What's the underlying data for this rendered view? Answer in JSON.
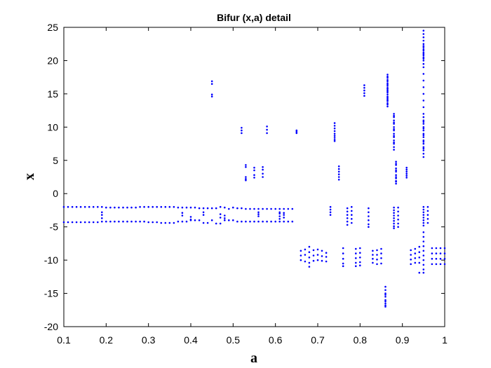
{
  "chart_data": {
    "type": "scatter",
    "title": "Bifur (x,a) detail",
    "xlabel": "a",
    "ylabel": "x",
    "xlim": [
      0.1,
      1.0
    ],
    "ylim": [
      -20,
      25
    ],
    "x_ticks": [
      "0.1",
      "0.2",
      "0.3",
      "0.4",
      "0.5",
      "0.6",
      "0.7",
      "0.8",
      "0.9",
      "1"
    ],
    "y_ticks": [
      "25",
      "20",
      "15",
      "10",
      "5",
      "0",
      "-5",
      "-10",
      "-15",
      "-20"
    ],
    "grid": false,
    "legend": "none",
    "marker_color": "#0000ff",
    "series": [
      {
        "x": [
          0.1,
          0.11,
          0.12,
          0.13,
          0.14,
          0.15,
          0.16,
          0.17,
          0.18,
          0.19,
          0.2,
          0.21,
          0.22,
          0.23,
          0.24,
          0.25,
          0.26,
          0.27,
          0.28,
          0.29,
          0.3,
          0.31,
          0.32,
          0.33,
          0.34,
          0.35,
          0.36,
          0.37,
          0.38,
          0.39,
          0.4,
          0.41,
          0.42,
          0.43,
          0.44,
          0.45,
          0.46,
          0.47,
          0.48,
          0.49,
          0.5,
          0.51,
          0.52,
          0.53,
          0.54,
          0.55,
          0.56,
          0.57,
          0.58,
          0.59,
          0.6,
          0.61,
          0.62,
          0.63,
          0.64,
          0.1,
          0.11,
          0.12,
          0.13,
          0.14,
          0.15,
          0.16,
          0.17,
          0.18,
          0.19,
          0.2,
          0.21,
          0.22,
          0.23,
          0.24,
          0.25,
          0.26,
          0.27,
          0.28,
          0.29,
          0.3,
          0.31,
          0.32,
          0.33,
          0.34,
          0.35,
          0.36,
          0.37,
          0.38,
          0.39,
          0.4,
          0.41,
          0.42,
          0.43,
          0.44,
          0.45,
          0.46,
          0.47,
          0.48,
          0.49,
          0.5,
          0.51,
          0.52,
          0.53,
          0.54,
          0.55,
          0.56,
          0.57,
          0.58,
          0.59,
          0.6,
          0.61,
          0.62,
          0.63,
          0.64,
          0.45,
          0.45,
          0.45,
          0.45,
          0.52,
          0.52,
          0.52,
          0.58,
          0.58,
          0.58,
          0.65,
          0.65,
          0.65,
          0.53,
          0.53,
          0.53,
          0.53,
          0.53,
          0.55,
          0.55,
          0.55,
          0.55,
          0.57,
          0.57,
          0.57,
          0.57,
          0.19,
          0.19,
          0.19,
          0.38,
          0.38,
          0.4,
          0.4,
          0.43,
          0.43,
          0.47,
          0.47,
          0.48,
          0.48,
          0.56,
          0.56,
          0.56,
          0.61,
          0.61,
          0.61,
          0.61,
          0.62,
          0.62,
          0.62,
          0.74,
          0.74,
          0.74,
          0.74,
          0.74,
          0.74,
          0.74,
          0.74,
          0.74,
          0.75,
          0.75,
          0.75,
          0.75,
          0.75,
          0.75,
          0.73,
          0.73,
          0.73,
          0.73,
          0.77,
          0.77,
          0.77,
          0.77,
          0.77,
          0.77,
          0.78,
          0.78,
          0.78,
          0.78,
          0.78,
          0.82,
          0.82,
          0.82,
          0.82,
          0.82,
          0.82,
          0.89,
          0.89,
          0.89,
          0.89,
          0.89,
          0.89,
          0.96,
          0.96,
          0.96,
          0.96,
          0.96,
          0.81,
          0.81,
          0.81,
          0.81,
          0.81,
          0.66,
          0.66,
          0.66,
          0.67,
          0.67,
          0.67,
          0.68,
          0.68,
          0.68,
          0.68,
          0.68,
          0.69,
          0.69,
          0.69,
          0.7,
          0.7,
          0.7,
          0.71,
          0.71,
          0.71,
          0.72,
          0.72,
          0.72,
          0.76,
          0.76,
          0.76,
          0.76,
          0.76,
          0.79,
          0.79,
          0.79,
          0.79,
          0.79,
          0.8,
          0.8,
          0.8,
          0.8,
          0.8,
          0.83,
          0.83,
          0.83,
          0.83,
          0.84,
          0.84,
          0.84,
          0.84,
          0.85,
          0.85,
          0.85,
          0.85,
          0.92,
          0.92,
          0.92,
          0.92,
          0.93,
          0.93,
          0.93,
          0.93,
          0.94,
          0.94,
          0.94,
          0.94,
          0.94,
          0.97,
          0.97,
          0.97,
          0.97,
          0.98,
          0.98,
          0.98,
          0.98,
          0.99,
          0.99,
          0.99,
          0.99,
          1.0,
          1.0,
          1.0,
          1.0,
          0.86,
          0.86,
          0.86,
          0.86,
          0.86,
          0.86,
          0.86,
          0.86,
          0.86,
          0.86,
          0.865,
          0.865,
          0.865,
          0.865,
          0.865,
          0.865,
          0.865,
          0.865,
          0.865,
          0.865,
          0.865,
          0.865,
          0.865,
          0.865,
          0.865,
          0.865,
          0.865,
          0.865,
          0.865,
          0.865,
          0.865,
          0.865,
          0.88,
          0.88,
          0.88,
          0.88,
          0.88,
          0.88,
          0.88,
          0.88,
          0.88,
          0.88,
          0.88,
          0.88,
          0.88,
          0.88,
          0.88,
          0.88,
          0.88,
          0.88,
          0.88,
          0.88,
          0.88,
          0.88,
          0.88,
          0.88,
          0.88,
          0.88,
          0.885,
          0.885,
          0.885,
          0.885,
          0.885,
          0.885,
          0.885,
          0.885,
          0.885,
          0.885,
          0.885,
          0.885,
          0.91,
          0.91,
          0.91,
          0.91,
          0.91,
          0.91,
          0.95,
          0.95,
          0.95,
          0.95,
          0.95,
          0.95,
          0.95,
          0.95,
          0.95,
          0.95,
          0.95,
          0.95,
          0.95,
          0.95,
          0.95,
          0.95,
          0.95,
          0.95,
          0.95,
          0.95,
          0.95,
          0.95,
          0.95,
          0.95,
          0.95,
          0.95,
          0.95,
          0.95,
          0.95,
          0.95,
          0.95,
          0.95,
          0.95,
          0.95,
          0.95,
          0.95,
          0.95,
          0.95,
          0.95,
          0.95,
          0.95,
          0.95,
          0.95,
          0.95,
          0.95,
          0.95,
          0.95,
          0.95,
          0.95,
          0.95,
          0.95,
          0.95,
          0.95,
          0.95,
          0.95,
          0.95,
          0.95,
          0.95,
          0.95,
          0.95
        ],
        "y": [
          -2.0,
          -2.0,
          -2.0,
          -2.0,
          -2.0,
          -2.0,
          -2.0,
          -2.0,
          -2.0,
          -2.0,
          -2.1,
          -2.1,
          -2.1,
          -2.1,
          -2.1,
          -2.1,
          -2.1,
          -2.1,
          -2.0,
          -2.0,
          -2.0,
          -2.0,
          -2.0,
          -2.0,
          -2.0,
          -2.0,
          -2.0,
          -2.1,
          -2.1,
          -2.1,
          -2.1,
          -2.1,
          -2.2,
          -2.2,
          -2.2,
          -2.2,
          -2.2,
          -2.0,
          -2.1,
          -2.3,
          -2.1,
          -2.2,
          -2.2,
          -2.3,
          -2.3,
          -2.3,
          -2.3,
          -2.3,
          -2.3,
          -2.3,
          -2.3,
          -2.3,
          -2.3,
          -2.3,
          -2.3,
          -4.3,
          -4.3,
          -4.3,
          -4.3,
          -4.3,
          -4.3,
          -4.3,
          -4.3,
          -4.3,
          -4.2,
          -4.2,
          -4.2,
          -4.2,
          -4.2,
          -4.2,
          -4.2,
          -4.2,
          -4.2,
          -4.2,
          -4.2,
          -4.3,
          -4.3,
          -4.3,
          -4.4,
          -4.4,
          -4.4,
          -4.4,
          -4.2,
          -4.2,
          -4.2,
          -4.0,
          -4.0,
          -4.0,
          -4.4,
          -4.4,
          -4.0,
          -4.5,
          -4.5,
          -4.0,
          -4.0,
          -4.0,
          -4.2,
          -4.2,
          -4.2,
          -4.2,
          -4.2,
          -4.2,
          -4.2,
          -4.2,
          -4.2,
          -4.2,
          -4.2,
          -4.2,
          -4.2,
          -4.2,
          16.9,
          16.5,
          14.6,
          14.9,
          9.9,
          9.5,
          9.1,
          10.1,
          9.6,
          9.1,
          9.5,
          9.3,
          9.1,
          4.3,
          4.0,
          2.5,
          2.2,
          2.0,
          3.9,
          3.5,
          2.8,
          2.4,
          4.0,
          3.6,
          3.0,
          2.5,
          -2.8,
          -3.2,
          -3.7,
          -2.9,
          -3.3,
          -3.5,
          -3.9,
          -2.8,
          -3.2,
          -3.1,
          -3.6,
          -3.3,
          -3.7,
          -2.8,
          -3.1,
          -3.4,
          -2.8,
          -3.0,
          -3.4,
          -3.8,
          -2.9,
          -3.2,
          -3.6,
          10.6,
          10.2,
          9.8,
          9.4,
          9.0,
          8.7,
          8.4,
          8.1,
          7.9,
          4.1,
          3.7,
          3.3,
          2.9,
          2.5,
          2.1,
          -2.0,
          -2.4,
          -2.8,
          -3.2,
          -2.2,
          -2.7,
          -3.2,
          -3.7,
          -4.2,
          -4.7,
          -2.0,
          -2.6,
          -3.2,
          -3.8,
          -4.4,
          -2.2,
          -2.8,
          -3.4,
          -4.0,
          -4.6,
          -5.0,
          -2.1,
          -2.7,
          -3.3,
          -3.9,
          -4.5,
          -5.0,
          -2.0,
          -2.6,
          -3.2,
          -3.8,
          -4.4,
          16.3,
          15.9,
          15.5,
          15.1,
          14.7,
          -8.6,
          -9.3,
          -10.0,
          -8.4,
          -9.2,
          -10.2,
          -8.0,
          -8.8,
          -9.6,
          -10.4,
          -11.0,
          -8.5,
          -9.3,
          -10.1,
          -8.4,
          -9.2,
          -10.0,
          -8.6,
          -9.4,
          -10.1,
          -8.9,
          -9.5,
          -10.2,
          -8.2,
          -9.0,
          -9.8,
          -10.5,
          -10.9,
          -8.3,
          -9.0,
          -9.7,
          -10.4,
          -10.9,
          -8.2,
          -8.9,
          -9.6,
          -10.3,
          -10.8,
          -8.6,
          -9.2,
          -9.8,
          -10.4,
          -8.5,
          -9.2,
          -9.9,
          -10.6,
          -8.3,
          -9.0,
          -9.7,
          -10.5,
          -8.5,
          -9.2,
          -9.9,
          -10.6,
          -8.3,
          -9.0,
          -9.7,
          -10.4,
          -8.0,
          -8.8,
          -9.6,
          -10.4,
          -11.9,
          -8.2,
          -9.0,
          -9.8,
          -10.6,
          -8.2,
          -9.0,
          -9.8,
          -10.6,
          -8.2,
          -9.0,
          -9.8,
          -10.6,
          -8.2,
          -9.0,
          -9.8,
          -10.6,
          -14.0,
          -14.5,
          -15.0,
          -15.5,
          -16.0,
          -16.5,
          -17.0,
          -15.2,
          -16.2,
          -16.8,
          17.9,
          17.4,
          16.9,
          16.4,
          15.9,
          15.4,
          14.9,
          14.4,
          13.9,
          13.4,
          13.1,
          17.6,
          16.6,
          15.6,
          14.6,
          13.6,
          16.2,
          15.2,
          14.2,
          17.1,
          15.8,
          14.0,
          12.0,
          11.5,
          11.0,
          10.5,
          10.0,
          9.5,
          9.0,
          8.5,
          8.0,
          7.5,
          7.0,
          6.6,
          11.7,
          10.7,
          9.7,
          8.7,
          7.7,
          -2.1,
          -2.5,
          -2.9,
          -3.3,
          -3.7,
          -4.1,
          -4.5,
          -4.9,
          -5.2,
          4.8,
          4.3,
          3.8,
          3.3,
          2.8,
          2.3,
          1.8,
          1.5,
          4.5,
          3.5,
          2.5,
          1.9,
          3.9,
          3.6,
          3.3,
          3.0,
          2.7,
          2.4,
          24.5,
          24.0,
          23.5,
          23.0,
          22.5,
          22.0,
          21.5,
          21.0,
          20.5,
          20.0,
          19.5,
          19.0,
          18.0,
          17.0,
          16.0,
          15.0,
          14.0,
          13.0,
          12.0,
          11.5,
          11.0,
          10.5,
          10.0,
          9.5,
          9.0,
          8.5,
          8.0,
          7.5,
          7.0,
          6.5,
          6.0,
          5.5,
          -2.0,
          -2.4,
          -2.8,
          -3.2,
          -3.6,
          -4.0,
          -4.4,
          -4.8,
          -5.8,
          -6.5,
          -7.2,
          -7.9,
          -8.6,
          -9.3,
          -10.0,
          -10.7,
          -11.4,
          -11.9,
          22.2,
          21.7,
          21.2,
          20.8,
          20.3,
          10.8,
          9.8,
          8.8,
          7.8,
          6.8
        ]
      }
    ]
  }
}
